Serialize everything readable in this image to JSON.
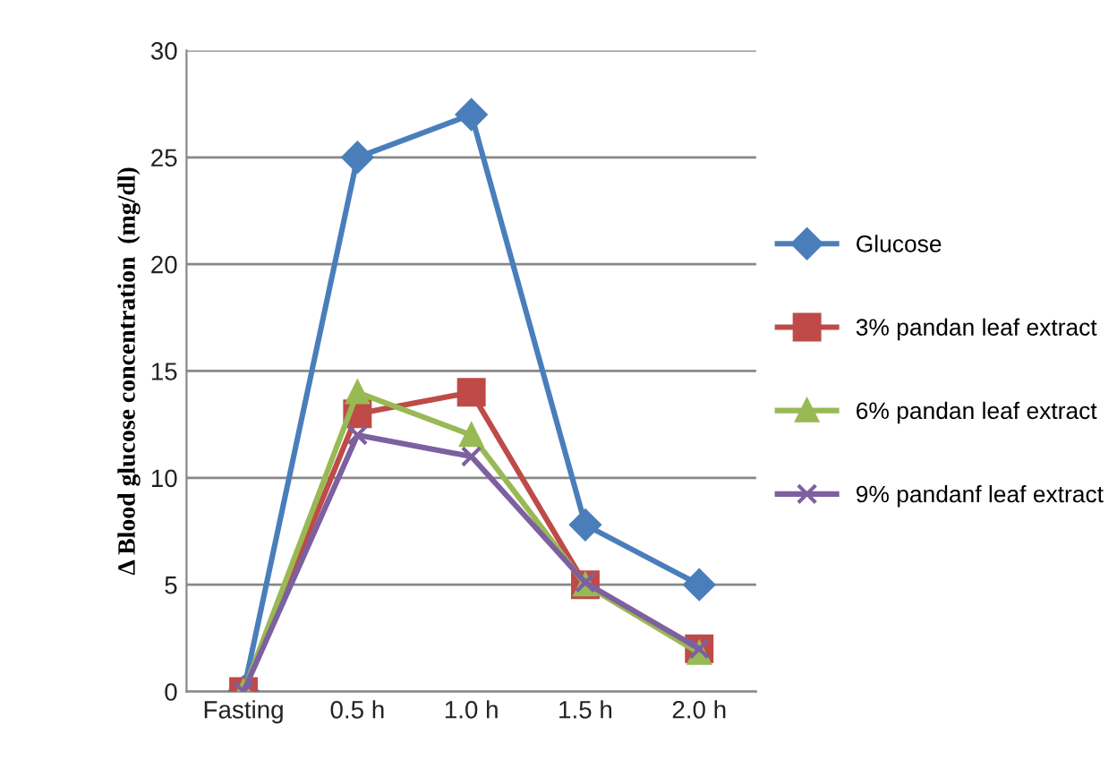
{
  "chart_data": {
    "type": "line",
    "ylabel": "Δ Blood glucose concentration  (mg/dl)",
    "categories": [
      "Fasting",
      "0.5 h",
      "1.0 h",
      "1.5 h",
      "2.0 h"
    ],
    "series": [
      {
        "name": "Glucose",
        "color": "#4a7ebb",
        "marker": "diamond",
        "values": [
          0,
          25,
          27,
          7.8,
          5
        ]
      },
      {
        "name": "3% pandan leaf extract",
        "color": "#be4b48",
        "marker": "square",
        "values": [
          0,
          13,
          14,
          5,
          2
        ]
      },
      {
        "name": "6% pandan leaf extract",
        "color": "#98b954",
        "marker": "triangle",
        "values": [
          0,
          14,
          12,
          5,
          1.8
        ]
      },
      {
        "name": "9% pandanf leaf extract",
        "color": "#7d60a0",
        "marker": "cross",
        "values": [
          0,
          12,
          11,
          5.1,
          2
        ]
      }
    ],
    "ylim": [
      0,
      30
    ],
    "yticks": [
      0,
      5,
      10,
      15,
      20,
      25,
      30
    ],
    "grid": "y",
    "legend": "right"
  }
}
